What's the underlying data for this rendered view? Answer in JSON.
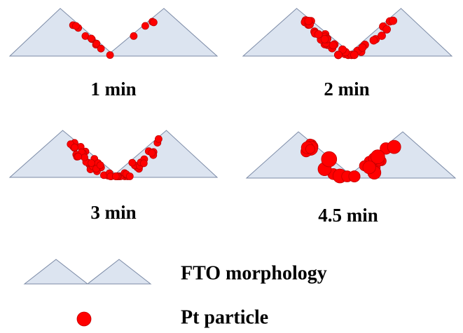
{
  "panels": [
    {
      "label": "1 min"
    },
    {
      "label": "2 min"
    },
    {
      "label": "3 min"
    },
    {
      "label": "4.5 min"
    }
  ],
  "legend": {
    "morphology": "FTO morphology",
    "particle": "Pt particle"
  }
}
